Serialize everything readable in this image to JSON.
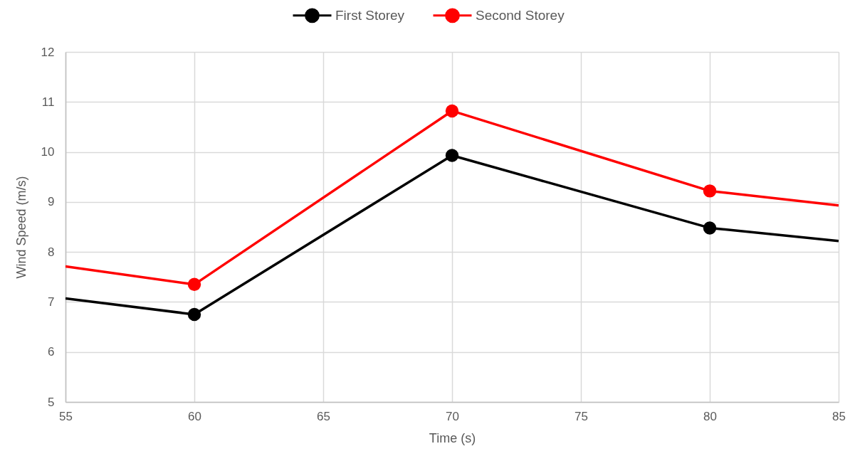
{
  "chart_data": {
    "type": "line",
    "xlabel": "Time (s)",
    "ylabel": "Wind Speed (m/s)",
    "x": [
      55,
      60,
      70,
      80,
      85
    ],
    "series": [
      {
        "name": "First Storey",
        "color": "#000000",
        "values": [
          7.07,
          6.75,
          9.93,
          8.48,
          8.22
        ]
      },
      {
        "name": "Second Storey",
        "color": "#ff0000",
        "values": [
          7.71,
          7.35,
          10.82,
          9.22,
          8.93
        ]
      }
    ],
    "xlim": [
      55,
      85
    ],
    "xticks": [
      55,
      60,
      65,
      70,
      75,
      80,
      85
    ],
    "ylim": [
      5,
      12
    ],
    "yticks": [
      5,
      6,
      7,
      8,
      9,
      10,
      11,
      12
    ],
    "grid": true,
    "legend": "top",
    "marker": "circle",
    "line_style": "solid"
  }
}
